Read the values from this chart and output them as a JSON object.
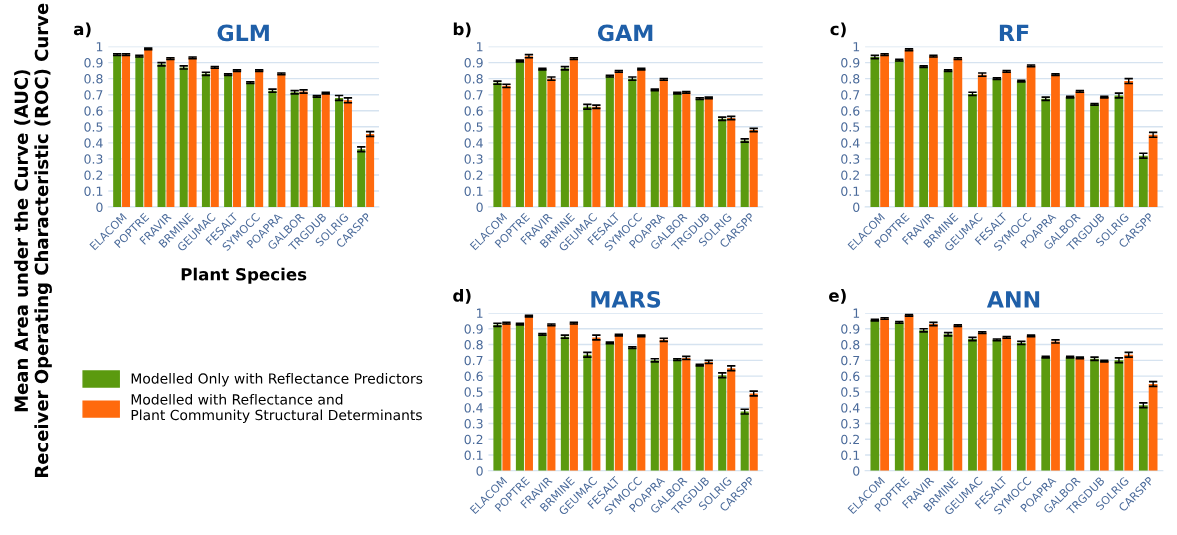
{
  "chart_data": [
    {
      "type": "bar",
      "title": "GLM",
      "xlabel": "Plant Species",
      "ylabel": "Mean Area under the Curve (AUC)\nReceiver Operating Characteristic (ROC) Curve",
      "annotations": [
        "a)"
      ],
      "categories": [
        "ELACOM",
        "POPTRE",
        "FRAVIR",
        "BRMINE",
        "GEUMAC",
        "FESALT",
        "SYMOCC",
        "POAPRA",
        "GALBOR",
        "TRGDUB",
        "SOLRIG",
        "CARSPP"
      ],
      "series": [
        {
          "name": "Modelled Only with Reflectance Predictors",
          "color": "#5b9a0f",
          "values": [
            0.95,
            0.94,
            0.89,
            0.87,
            0.83,
            0.825,
            0.775,
            0.725,
            0.715,
            0.69,
            0.68,
            0.36
          ],
          "errors": [
            0.005,
            0.005,
            0.01,
            0.01,
            0.01,
            0.005,
            0.005,
            0.01,
            0.01,
            0.005,
            0.015,
            0.015
          ]
        },
        {
          "name": "Modelled with Reflectance and\nPlant Community Structural Determinants",
          "color": "#ff6a0d",
          "values": [
            0.95,
            0.985,
            0.925,
            0.93,
            0.87,
            0.85,
            0.85,
            0.83,
            0.72,
            0.71,
            0.665,
            0.455
          ],
          "errors": [
            0.005,
            0.005,
            0.005,
            0.005,
            0.005,
            0.005,
            0.005,
            0.005,
            0.01,
            0.005,
            0.015,
            0.015
          ]
        }
      ],
      "ylim": [
        0,
        1
      ],
      "yticks": [
        0,
        0.1,
        0.2,
        0.3,
        0.4,
        0.5,
        0.6,
        0.7,
        0.8,
        0.9,
        1
      ],
      "grid": "y",
      "legend": "bottom left"
    },
    {
      "type": "bar",
      "title": "GAM",
      "annotations": [
        "b)"
      ],
      "categories": [
        "ELACOM",
        "POPTRE",
        "FRAVIR",
        "BRMINE",
        "GEUMAC",
        "FESALT",
        "SYMOCC",
        "POAPRA",
        "GALBOR",
        "TRGDUB",
        "SOLRIG",
        "CARSPP"
      ],
      "series": [
        {
          "color": "#5b9a0f",
          "values": [
            0.775,
            0.91,
            0.86,
            0.865,
            0.625,
            0.815,
            0.8,
            0.73,
            0.71,
            0.675,
            0.55,
            0.415
          ],
          "errors": [
            0.01,
            0.005,
            0.005,
            0.01,
            0.015,
            0.005,
            0.01,
            0.005,
            0.005,
            0.005,
            0.01,
            0.01
          ]
        },
        {
          "color": "#ff6a0d",
          "values": [
            0.755,
            0.94,
            0.8,
            0.925,
            0.625,
            0.845,
            0.86,
            0.795,
            0.715,
            0.68,
            0.555,
            0.48
          ],
          "errors": [
            0.01,
            0.01,
            0.01,
            0.005,
            0.01,
            0.005,
            0.005,
            0.005,
            0.005,
            0.005,
            0.01,
            0.01
          ]
        }
      ],
      "ylim": [
        0,
        1
      ],
      "yticks": [
        0,
        0.1,
        0.2,
        0.3,
        0.4,
        0.5,
        0.6,
        0.7,
        0.8,
        0.9,
        1
      ],
      "grid": "y"
    },
    {
      "type": "bar",
      "title": "RF",
      "annotations": [
        "c)"
      ],
      "categories": [
        "ELACOM",
        "POPTRE",
        "FRAVIR",
        "BRMINE",
        "GEUMAC",
        "FESALT",
        "SYMOCC",
        "POAPRA",
        "GALBOR",
        "TRGDUB",
        "SOLRIG",
        "CARSPP"
      ],
      "series": [
        {
          "color": "#5b9a0f",
          "values": [
            0.935,
            0.915,
            0.875,
            0.85,
            0.705,
            0.8,
            0.785,
            0.675,
            0.685,
            0.64,
            0.695,
            0.32
          ],
          "errors": [
            0.01,
            0.005,
            0.005,
            0.005,
            0.01,
            0.005,
            0.005,
            0.01,
            0.005,
            0.005,
            0.015,
            0.015
          ]
        },
        {
          "color": "#ff6a0d",
          "values": [
            0.95,
            0.98,
            0.94,
            0.925,
            0.825,
            0.845,
            0.88,
            0.825,
            0.72,
            0.685,
            0.785,
            0.45
          ],
          "errors": [
            0.005,
            0.005,
            0.005,
            0.005,
            0.01,
            0.005,
            0.005,
            0.005,
            0.005,
            0.005,
            0.015,
            0.015
          ]
        }
      ],
      "ylim": [
        0,
        1
      ],
      "yticks": [
        0,
        0.1,
        0.2,
        0.3,
        0.4,
        0.5,
        0.6,
        0.7,
        0.8,
        0.9,
        1
      ],
      "grid": "y"
    },
    {
      "type": "bar",
      "title": "MARS",
      "annotations": [
        "d)"
      ],
      "categories": [
        "ELACOM",
        "POPTRE",
        "FRAVIR",
        "BRMINE",
        "GEUMAC",
        "FESALT",
        "SYMOCC",
        "POAPRA",
        "GALBOR",
        "TRGDUB",
        "SOLRIG",
        "CARSPP"
      ],
      "series": [
        {
          "color": "#5b9a0f",
          "values": [
            0.925,
            0.93,
            0.865,
            0.85,
            0.735,
            0.81,
            0.78,
            0.7,
            0.705,
            0.67,
            0.605,
            0.375
          ],
          "errors": [
            0.01,
            0.005,
            0.005,
            0.01,
            0.015,
            0.005,
            0.005,
            0.01,
            0.005,
            0.005,
            0.015,
            0.015
          ]
        },
        {
          "color": "#ff6a0d",
          "values": [
            0.935,
            0.98,
            0.925,
            0.935,
            0.845,
            0.86,
            0.855,
            0.83,
            0.715,
            0.69,
            0.65,
            0.49
          ],
          "errors": [
            0.005,
            0.005,
            0.005,
            0.005,
            0.015,
            0.005,
            0.005,
            0.01,
            0.01,
            0.01,
            0.015,
            0.015
          ]
        }
      ],
      "ylim": [
        0,
        1
      ],
      "yticks": [
        0,
        0.1,
        0.2,
        0.3,
        0.4,
        0.5,
        0.6,
        0.7,
        0.8,
        0.9,
        1
      ],
      "grid": "y"
    },
    {
      "type": "bar",
      "title": "ANN",
      "annotations": [
        "e)"
      ],
      "categories": [
        "ELACOM",
        "POPTRE",
        "FRAVIR",
        "BRMINE",
        "GEUMAC",
        "FESALT",
        "SYMOCC",
        "POAPRA",
        "GALBOR",
        "TRGDUB",
        "SOLRIG",
        "CARSPP"
      ],
      "series": [
        {
          "color": "#5b9a0f",
          "values": [
            0.955,
            0.94,
            0.89,
            0.865,
            0.835,
            0.83,
            0.81,
            0.72,
            0.72,
            0.71,
            0.7,
            0.415
          ],
          "errors": [
            0.005,
            0.005,
            0.01,
            0.01,
            0.01,
            0.005,
            0.01,
            0.005,
            0.005,
            0.01,
            0.015,
            0.015
          ]
        },
        {
          "color": "#ff6a0d",
          "values": [
            0.965,
            0.985,
            0.93,
            0.92,
            0.875,
            0.845,
            0.855,
            0.82,
            0.715,
            0.695,
            0.735,
            0.55
          ],
          "errors": [
            0.005,
            0.005,
            0.01,
            0.005,
            0.005,
            0.005,
            0.005,
            0.01,
            0.005,
            0.005,
            0.015,
            0.015
          ]
        }
      ],
      "ylim": [
        0,
        1
      ],
      "yticks": [
        0,
        0.1,
        0.2,
        0.3,
        0.4,
        0.5,
        0.6,
        0.7,
        0.8,
        0.9,
        1
      ],
      "grid": "y"
    }
  ]
}
